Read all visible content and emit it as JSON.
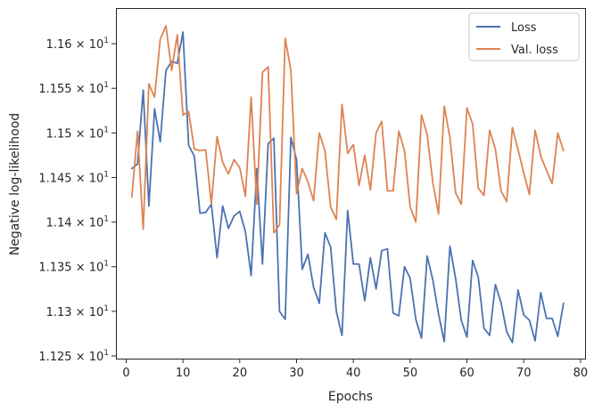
{
  "chart_data": {
    "type": "line",
    "xlabel": "Epochs",
    "ylabel": "Negative log-likelihood",
    "xlim": [
      -1.8,
      80.8
    ],
    "ylim": [
      11.247,
      11.64
    ],
    "x_ticks": [
      {
        "value": 0,
        "label": "0"
      },
      {
        "value": 10,
        "label": "10"
      },
      {
        "value": 20,
        "label": "20"
      },
      {
        "value": 30,
        "label": "30"
      },
      {
        "value": 40,
        "label": "40"
      },
      {
        "value": 50,
        "label": "50"
      },
      {
        "value": 60,
        "label": "60"
      },
      {
        "value": 70,
        "label": "70"
      },
      {
        "value": 80,
        "label": "80"
      }
    ],
    "y_ticks": [
      {
        "value": 11.25,
        "mantissa": "1.125",
        "exponent": "1"
      },
      {
        "value": 11.3,
        "mantissa": "1.13",
        "exponent": "1"
      },
      {
        "value": 11.35,
        "mantissa": "1.135",
        "exponent": "1"
      },
      {
        "value": 11.4,
        "mantissa": "1.14",
        "exponent": "1"
      },
      {
        "value": 11.45,
        "mantissa": "1.145",
        "exponent": "1"
      },
      {
        "value": 11.5,
        "mantissa": "1.15",
        "exponent": "1"
      },
      {
        "value": 11.55,
        "mantissa": "1.155",
        "exponent": "1"
      },
      {
        "value": 11.6,
        "mantissa": "1.16",
        "exponent": "1"
      }
    ],
    "y_tick_times": "×",
    "y_tick_base": "10",
    "legend_position": "top-right",
    "grid": false,
    "x": [
      1,
      2,
      3,
      4,
      5,
      6,
      7,
      8,
      9,
      10,
      11,
      12,
      13,
      14,
      15,
      16,
      17,
      18,
      19,
      20,
      21,
      22,
      23,
      24,
      25,
      26,
      27,
      28,
      29,
      30,
      31,
      32,
      33,
      34,
      35,
      36,
      37,
      38,
      39,
      40,
      41,
      42,
      43,
      44,
      45,
      46,
      47,
      48,
      49,
      50,
      51,
      52,
      53,
      54,
      55,
      56,
      57,
      58,
      59,
      60,
      61,
      62,
      63,
      64,
      65,
      66,
      67,
      68,
      69,
      70,
      71,
      72,
      73,
      74,
      75,
      76,
      77
    ],
    "series": [
      {
        "name": "Loss",
        "color": "#4c72b0",
        "values": [
          11.46,
          11.465,
          11.548,
          11.418,
          11.527,
          11.49,
          11.57,
          11.58,
          11.578,
          11.613,
          11.486,
          11.474,
          11.41,
          11.411,
          11.42,
          11.36,
          11.418,
          11.393,
          11.407,
          11.412,
          11.389,
          11.34,
          11.46,
          11.353,
          11.488,
          11.494,
          11.3,
          11.291,
          11.495,
          11.47,
          11.347,
          11.364,
          11.327,
          11.309,
          11.388,
          11.372,
          11.3,
          11.273,
          11.413,
          11.353,
          11.353,
          11.312,
          11.36,
          11.325,
          11.368,
          11.37,
          11.298,
          11.295,
          11.35,
          11.337,
          11.291,
          11.27,
          11.362,
          11.335,
          11.297,
          11.266,
          11.373,
          11.337,
          11.29,
          11.271,
          11.357,
          11.338,
          11.281,
          11.273,
          11.33,
          11.31,
          11.277,
          11.265,
          11.324,
          11.296,
          11.29,
          11.267,
          11.321,
          11.292,
          11.292,
          11.272,
          11.309
        ]
      },
      {
        "name": "Val. loss",
        "color": "#dd8452",
        "values": [
          11.428,
          11.502,
          11.392,
          11.555,
          11.54,
          11.605,
          11.62,
          11.57,
          11.61,
          11.52,
          11.524,
          11.482,
          11.48,
          11.481,
          11.42,
          11.496,
          11.467,
          11.454,
          11.47,
          11.461,
          11.429,
          11.54,
          11.42,
          11.568,
          11.574,
          11.388,
          11.397,
          11.606,
          11.57,
          11.432,
          11.46,
          11.445,
          11.424,
          11.5,
          11.48,
          11.417,
          11.403,
          11.532,
          11.477,
          11.487,
          11.441,
          11.475,
          11.436,
          11.5,
          11.513,
          11.435,
          11.435,
          11.502,
          11.48,
          11.417,
          11.4,
          11.52,
          11.498,
          11.444,
          11.409,
          11.53,
          11.495,
          11.433,
          11.42,
          11.528,
          11.51,
          11.438,
          11.43,
          11.503,
          11.482,
          11.435,
          11.423,
          11.506,
          11.481,
          11.455,
          11.431,
          11.503,
          11.474,
          11.458,
          11.443,
          11.5,
          11.48
        ]
      }
    ]
  }
}
